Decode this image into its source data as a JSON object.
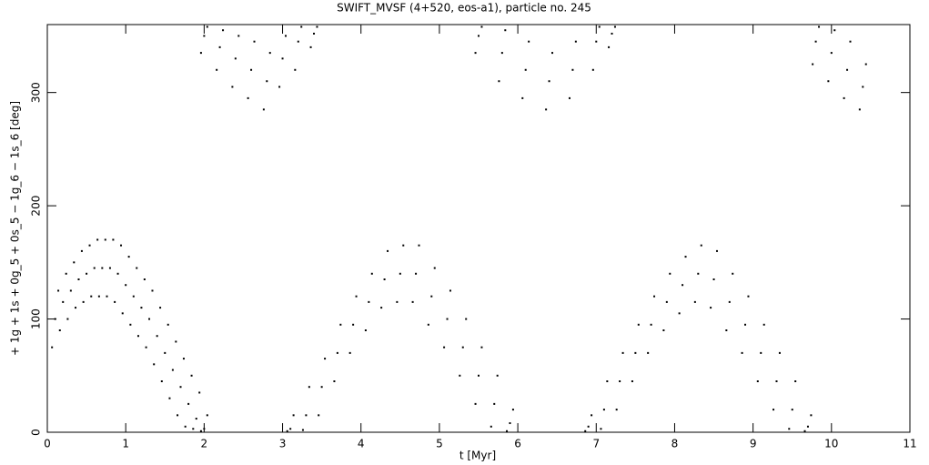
{
  "chart_data": {
    "type": "scatter",
    "title": "SWIFT_MVSF (4+520, eos-a1), particle no. 245",
    "x_label": "t [Myr]",
    "y_label": "+ 1g + 1s + 0g_5 + 0s_5 − 1g_6 − 1s_6 [deg]",
    "color": "#000000",
    "xlim": [
      0,
      11
    ],
    "ylim": [
      0,
      360
    ],
    "xticks": [
      0,
      1,
      2,
      3,
      4,
      5,
      6,
      7,
      8,
      9,
      10,
      11
    ],
    "yticks": [
      0,
      100,
      200,
      300
    ],
    "x": [
      0.06,
      0.1,
      0.14,
      0.16,
      0.2,
      0.24,
      0.26,
      0.3,
      0.34,
      0.36,
      0.4,
      0.44,
      0.46,
      0.5,
      0.54,
      0.56,
      0.6,
      0.64,
      0.66,
      0.7,
      0.74,
      0.76,
      0.8,
      0.84,
      0.86,
      0.9,
      0.94,
      0.96,
      1.0,
      1.04,
      1.06,
      1.1,
      1.14,
      1.16,
      1.2,
      1.24,
      1.26,
      1.3,
      1.34,
      1.36,
      1.4,
      1.44,
      1.46,
      1.5,
      1.54,
      1.56,
      1.6,
      1.64,
      1.66,
      1.7,
      1.74,
      1.76,
      1.8,
      1.84,
      1.86,
      1.9,
      1.94,
      1.96,
      2.0,
      2.04,
      1.96,
      2.0,
      2.04,
      2.16,
      2.2,
      2.24,
      2.36,
      2.4,
      2.44,
      2.56,
      2.6,
      2.64,
      2.76,
      2.8,
      2.84,
      2.96,
      3.0,
      3.04,
      3.16,
      3.2,
      3.24,
      3.36,
      3.4,
      3.44,
      3.06,
      3.1,
      3.14,
      3.26,
      3.3,
      3.34,
      3.46,
      3.5,
      3.54,
      3.66,
      3.7,
      3.74,
      3.86,
      3.9,
      3.94,
      4.06,
      4.1,
      4.14,
      4.26,
      4.3,
      4.34,
      4.46,
      4.5,
      4.54,
      4.66,
      4.7,
      4.74,
      4.86,
      4.9,
      4.94,
      5.06,
      5.1,
      5.14,
      5.26,
      5.3,
      5.34,
      5.46,
      5.5,
      5.54,
      5.66,
      5.7,
      5.74,
      5.86,
      5.9,
      5.94,
      5.46,
      5.5,
      5.54,
      5.76,
      5.8,
      5.84,
      6.06,
      6.1,
      6.14,
      6.36,
      6.4,
      6.44,
      6.66,
      6.7,
      6.74,
      6.96,
      7.0,
      7.04,
      7.16,
      7.2,
      7.24,
      6.86,
      6.9,
      6.94,
      7.06,
      7.1,
      7.14,
      7.26,
      7.3,
      7.34,
      7.46,
      7.5,
      7.54,
      7.66,
      7.7,
      7.74,
      7.86,
      7.9,
      7.94,
      8.06,
      8.1,
      8.14,
      8.26,
      8.3,
      8.34,
      8.46,
      8.5,
      8.54,
      8.66,
      8.7,
      8.74,
      8.86,
      8.9,
      8.94,
      9.06,
      9.1,
      9.14,
      9.26,
      9.3,
      9.34,
      9.46,
      9.5,
      9.54,
      9.66,
      9.7,
      9.74,
      9.76,
      9.8,
      9.84,
      9.96,
      10.0,
      10.04,
      10.16,
      10.2,
      10.24,
      10.36,
      10.4,
      10.44
    ],
    "values": [
      75,
      100,
      125,
      90,
      115,
      140,
      100,
      125,
      150,
      110,
      135,
      160,
      115,
      140,
      165,
      120,
      145,
      170,
      120,
      145,
      170,
      120,
      145,
      170,
      115,
      140,
      165,
      105,
      130,
      155,
      95,
      120,
      145,
      85,
      110,
      135,
      75,
      100,
      125,
      60,
      85,
      110,
      45,
      70,
      95,
      30,
      55,
      80,
      15,
      40,
      65,
      5,
      25,
      50,
      3,
      12,
      35,
      1,
      3,
      15,
      335,
      350,
      358,
      320,
      340,
      355,
      305,
      330,
      350,
      295,
      320,
      345,
      285,
      310,
      335,
      305,
      330,
      350,
      320,
      345,
      358,
      340,
      352,
      358,
      1,
      3,
      15,
      2,
      15,
      40,
      15,
      40,
      65,
      45,
      70,
      95,
      70,
      95,
      120,
      90,
      115,
      140,
      110,
      135,
      160,
      115,
      140,
      165,
      115,
      140,
      165,
      95,
      120,
      145,
      75,
      100,
      125,
      50,
      75,
      100,
      25,
      50,
      75,
      5,
      25,
      50,
      1,
      8,
      20,
      335,
      350,
      358,
      310,
      335,
      355,
      295,
      320,
      345,
      285,
      310,
      335,
      295,
      320,
      345,
      320,
      345,
      358,
      340,
      352,
      358,
      1,
      5,
      15,
      3,
      20,
      45,
      20,
      45,
      70,
      45,
      70,
      95,
      70,
      95,
      120,
      90,
      115,
      140,
      105,
      130,
      155,
      115,
      140,
      165,
      110,
      135,
      160,
      90,
      115,
      140,
      70,
      95,
      120,
      45,
      70,
      95,
      20,
      45,
      70,
      3,
      20,
      45,
      1,
      5,
      15,
      325,
      345,
      358,
      310,
      335,
      355,
      295,
      320,
      345,
      285,
      305,
      325
    ]
  }
}
